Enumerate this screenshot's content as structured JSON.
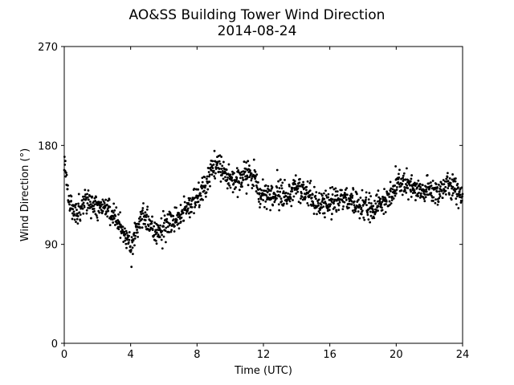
{
  "chart_data": {
    "type": "scatter",
    "title": "AO&SS Building Tower Wind Direction",
    "subtitle": "2014-08-24",
    "xlabel": "Time (UTC)",
    "ylabel": "Wind Direction (°)",
    "xlim": [
      0,
      24
    ],
    "ylim": [
      0,
      270
    ],
    "xticks": [
      0,
      4,
      8,
      12,
      16,
      20,
      24
    ],
    "yticks": [
      0,
      90,
      180,
      270
    ],
    "grid": false,
    "marker_color": "#000000",
    "profile": {
      "x": [
        0,
        0.1,
        0.3,
        0.6,
        1.0,
        1.3,
        1.6,
        2.0,
        2.5,
        3.0,
        3.3,
        3.6,
        3.9,
        4.1,
        4.4,
        4.7,
        5.0,
        5.4,
        5.8,
        6.2,
        6.6,
        7.0,
        7.5,
        8.0,
        8.5,
        8.8,
        9.1,
        9.4,
        9.8,
        10.2,
        10.7,
        11.2,
        11.5,
        11.8,
        12.2,
        12.6,
        13.0,
        13.5,
        14.0,
        14.5,
        15.0,
        15.5,
        16.0,
        16.5,
        17.0,
        17.5,
        18.0,
        18.5,
        19.0,
        19.4,
        19.8,
        20.2,
        20.6,
        21.0,
        21.5,
        22.0,
        22.5,
        23.0,
        23.5,
        24.0
      ],
      "y": [
        172,
        155,
        128,
        118,
        122,
        132,
        128,
        125,
        122,
        117,
        110,
        100,
        92,
        90,
        108,
        117,
        110,
        100,
        105,
        108,
        112,
        117,
        124,
        133,
        143,
        157,
        162,
        162,
        152,
        148,
        150,
        155,
        150,
        137,
        133,
        134,
        137,
        134,
        142,
        137,
        130,
        124,
        128,
        130,
        132,
        127,
        125,
        124,
        127,
        128,
        137,
        147,
        144,
        140,
        137,
        140,
        137,
        144,
        140,
        136
      ],
      "spread_deg": 6
    },
    "points_per_hour": 60,
    "marker_size": 2
  }
}
